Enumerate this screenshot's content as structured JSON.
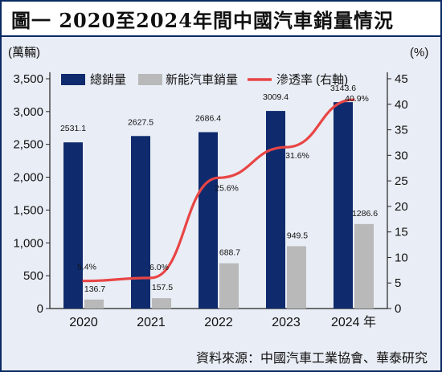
{
  "title": "圖一 2020至2024年間中國汽車銷量情況",
  "source": "資料來源：中國汽車工業協會、華泰研究",
  "colors": {
    "total_sales": "#0f2b6e",
    "nev_sales": "#b9b9b9",
    "penetration": "#e84545",
    "background": "#e9edf5",
    "frame": "#0b2a63"
  },
  "chart_data": {
    "type": "bar",
    "categories": [
      "2020",
      "2021",
      "2022",
      "2023",
      "2024 年"
    ],
    "series": [
      {
        "name": "總銷量",
        "type": "bar",
        "axis": "left",
        "values": [
          2531.1,
          2627.5,
          2686.4,
          3009.4,
          3143.6
        ],
        "labels": [
          "2531.1",
          "2627.5",
          "2686.4",
          "3009.4",
          "3143.6"
        ]
      },
      {
        "name": "新能汽車銷量",
        "type": "bar",
        "axis": "left",
        "values": [
          136.7,
          157.5,
          688.7,
          949.5,
          1286.6
        ],
        "labels": [
          "136.7",
          "157.5",
          "688.7",
          "949.5",
          "1286.6"
        ]
      },
      {
        "name": "滲透率 (右軸)",
        "type": "line",
        "axis": "right",
        "values": [
          5.4,
          6.0,
          25.6,
          31.6,
          40.9
        ],
        "labels": [
          "5.4%",
          "6.0%",
          "25.6%",
          "31.6%",
          "40.9%"
        ]
      }
    ],
    "ylabel": "(萬輛)",
    "y2label": "(%)",
    "ylim": [
      0,
      3500
    ],
    "y2lim": [
      0,
      45
    ],
    "yticks": [
      "0",
      "500",
      "1,000",
      "1,500",
      "2,000",
      "2,500",
      "3,000",
      "3,500"
    ],
    "y2ticks": [
      "0",
      "5",
      "10",
      "15",
      "20",
      "25",
      "30",
      "35",
      "40",
      "45"
    ],
    "grid": false,
    "legend_position": "top"
  }
}
